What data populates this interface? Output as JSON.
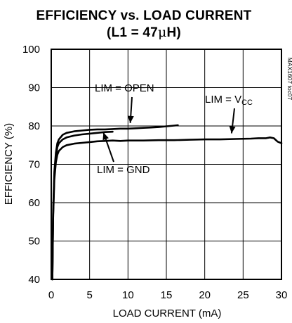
{
  "chart_data": {
    "type": "line",
    "title": "EFFICIENCY vs. LOAD CURRENT",
    "subtitle_prefix": "(L1 = 47",
    "subtitle_mu": "μ",
    "subtitle_suffix": "H)",
    "xlabel": "LOAD CURRENT (mA)",
    "ylabel": "EFFICIENCY (%)",
    "xlim": [
      0,
      30
    ],
    "ylim": [
      40,
      100
    ],
    "xticks": [
      0,
      5,
      10,
      15,
      20,
      25,
      30
    ],
    "yticks": [
      40,
      50,
      60,
      70,
      80,
      90,
      100
    ],
    "grid": true,
    "figure_id": "MAX1607 toc07",
    "series": [
      {
        "name": "LIM = OPEN",
        "x": [
          0.15,
          0.25,
          0.4,
          0.6,
          0.8,
          1.0,
          1.5,
          2,
          3,
          4,
          5,
          6,
          7,
          8,
          9,
          10,
          11,
          12,
          13,
          14,
          15,
          16,
          16.5
        ],
        "y": [
          40,
          58,
          68,
          73,
          75.5,
          76.5,
          77.7,
          78.2,
          78.6,
          78.8,
          79.0,
          79.1,
          79.1,
          79.2,
          79.3,
          79.3,
          79.4,
          79.5,
          79.6,
          79.7,
          79.9,
          80.1,
          80.2
        ]
      },
      {
        "name": "LIM = GND",
        "x": [
          0.15,
          0.25,
          0.4,
          0.6,
          0.8,
          1.0,
          1.5,
          2,
          3,
          4,
          5,
          6,
          7,
          8
        ],
        "y": [
          40,
          57,
          67,
          72,
          74.5,
          75.5,
          76.5,
          77,
          77.5,
          77.8,
          78.0,
          78.2,
          78.4,
          78.5
        ]
      },
      {
        "name": "LIM = V",
        "name_sub": "CC",
        "x": [
          0.15,
          0.25,
          0.4,
          0.6,
          0.8,
          1.0,
          1.5,
          2,
          3,
          4,
          5,
          6,
          7,
          8,
          9,
          10,
          12,
          14,
          16,
          18,
          20,
          22,
          24,
          26,
          27,
          28,
          28.5,
          29,
          29.5,
          30
        ],
        "y": [
          40,
          56,
          66,
          70.5,
          72.5,
          73.5,
          74.5,
          75,
          75.4,
          75.6,
          75.8,
          76.0,
          76.1,
          76.2,
          76.1,
          76.2,
          76.2,
          76.3,
          76.3,
          76.4,
          76.5,
          76.5,
          76.6,
          76.7,
          76.8,
          76.8,
          77.0,
          76.8,
          75.9,
          75.5
        ]
      }
    ],
    "annotations": [
      {
        "series": "LIM = OPEN",
        "label": "LIM = OPEN",
        "arrow_to": {
          "x": 10.3,
          "y": 79.3
        }
      },
      {
        "series": "LIM = GND",
        "label": "LIM = GND",
        "arrow_to": {
          "x": 6.8,
          "y": 78.3
        }
      },
      {
        "series": "LIM = V",
        "label": "LIM = V",
        "label_sub": "CC",
        "arrow_to": {
          "x": 23.5,
          "y": 76.6
        }
      }
    ]
  }
}
